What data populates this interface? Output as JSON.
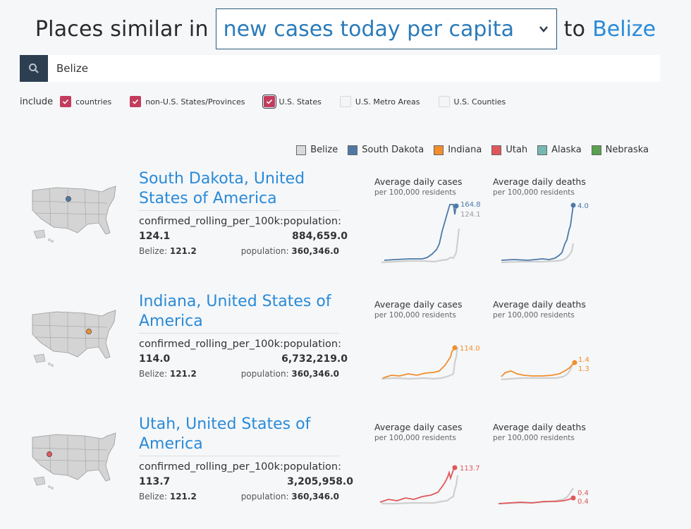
{
  "header": {
    "prefix": "Places similar in",
    "metric": "new cases today per capita",
    "to": "to",
    "place": "Belize"
  },
  "search": {
    "value": "Belize",
    "placeholder": ""
  },
  "filters": {
    "include_label": "include",
    "options": [
      {
        "label": "countries",
        "checked": true
      },
      {
        "label": "non-U.S. States/Provinces",
        "checked": true
      },
      {
        "label": "U.S. States",
        "checked": true
      },
      {
        "label": "U.S. Metro Areas",
        "checked": false
      },
      {
        "label": "U.S. Counties",
        "checked": false
      }
    ]
  },
  "legend": [
    {
      "name": "Belize",
      "color": "#d9d9d9"
    },
    {
      "name": "South Dakota",
      "color": "#4e79a7"
    },
    {
      "name": "Indiana",
      "color": "#f28e2b"
    },
    {
      "name": "Utah",
      "color": "#e15759"
    },
    {
      "name": "Alaska",
      "color": "#76b7b2"
    },
    {
      "name": "Nebraska",
      "color": "#59a14f"
    }
  ],
  "results": [
    {
      "title_line1": "South Dakota, United",
      "title_line2": "States of America",
      "metric_label": "confirmed_rolling_per_100k:population:",
      "metric_value": "124.1",
      "population": "884,659.0",
      "belize_label": "Belize:",
      "belize_value": "121.2",
      "population_label": "population:",
      "belize_population": "360,346.0",
      "color": "#4e79a7",
      "cases_title": "Average daily cases",
      "cases_sub": "per 100,000 residents",
      "cases_end_label": "164.8",
      "cases_end_label_2": "124.1",
      "deaths_title": "Average daily deaths",
      "deaths_sub": "per 100,000 residents",
      "deaths_end_label": "4.0"
    },
    {
      "title_line1": "Indiana, United States of",
      "title_line2": "America",
      "metric_label": "confirmed_rolling_per_100k:population:",
      "metric_value": "114.0",
      "population": "6,732,219.0",
      "belize_label": "Belize:",
      "belize_value": "121.2",
      "population_label": "population:",
      "belize_population": "360,346.0",
      "color": "#f28e2b",
      "cases_title": "Average daily cases",
      "cases_sub": "per 100,000 residents",
      "cases_end_label": "114.0",
      "deaths_title": "Average daily deaths",
      "deaths_sub": "per 100,000 residents",
      "deaths_end_label": "1.4",
      "deaths_end_label_2": "1.3"
    },
    {
      "title_line1": "Utah, United States of",
      "title_line2": "America",
      "metric_label": "confirmed_rolling_per_100k:population:",
      "metric_value": "113.7",
      "population": "3,205,958.0",
      "belize_label": "Belize:",
      "belize_value": "121.2",
      "population_label": "population:",
      "belize_population": "360,346.0",
      "color": "#e15759",
      "cases_title": "Average daily cases",
      "cases_sub": "per 100,000 residents",
      "cases_end_label": "113.7",
      "deaths_title": "Average daily deaths",
      "deaths_sub": "per 100,000 residents",
      "deaths_end_label": "0.4",
      "deaths_end_label_2": "0.4"
    }
  ]
}
